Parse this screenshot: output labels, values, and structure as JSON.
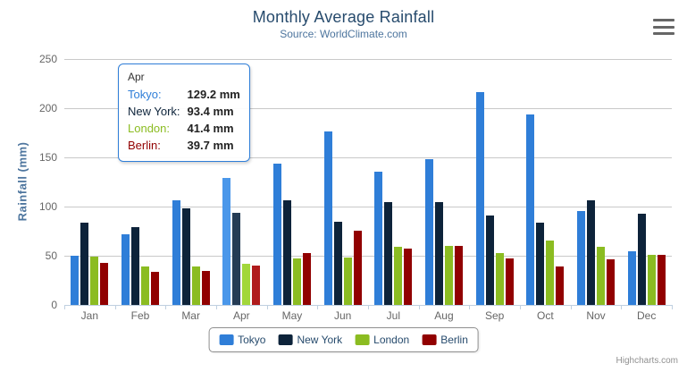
{
  "title": "Monthly Average Rainfall",
  "subtitle": "Source: WorldClimate.com",
  "credits": "Highcharts.com",
  "chart_data": {
    "type": "bar",
    "title": "Monthly Average Rainfall",
    "subtitle": "Source: WorldClimate.com",
    "categories": [
      "Jan",
      "Feb",
      "Mar",
      "Apr",
      "May",
      "Jun",
      "Jul",
      "Aug",
      "Sep",
      "Oct",
      "Nov",
      "Dec"
    ],
    "series": [
      {
        "name": "Tokyo",
        "color": "#2f7ed8",
        "values": [
          49.9,
          71.5,
          106.4,
          129.2,
          144.0,
          176.0,
          135.6,
          148.5,
          216.4,
          194.1,
          95.6,
          54.4
        ]
      },
      {
        "name": "New York",
        "color": "#0d233a",
        "values": [
          83.6,
          78.8,
          98.5,
          93.4,
          106.0,
          84.5,
          105.0,
          104.3,
          91.2,
          83.5,
          106.6,
          92.3
        ]
      },
      {
        "name": "London",
        "color": "#8bbc21",
        "values": [
          48.9,
          38.8,
          39.3,
          41.4,
          47.0,
          48.3,
          59.0,
          59.6,
          52.4,
          65.2,
          59.3,
          51.2
        ]
      },
      {
        "name": "Berlin",
        "color": "#910000",
        "values": [
          42.4,
          33.2,
          34.5,
          39.7,
          52.6,
          75.5,
          57.4,
          60.4,
          47.6,
          39.1,
          46.8,
          51.1
        ]
      }
    ],
    "xlabel": "",
    "ylabel": "Rainfall (mm)",
    "ylim": [
      0,
      250
    ],
    "yticks": [
      0,
      50,
      100,
      150,
      200,
      250
    ],
    "grid": true,
    "legend_position": "bottom"
  },
  "tooltip": {
    "header": "Apr",
    "category_index": 3,
    "border_color": "#2f7ed8",
    "rows": [
      {
        "label": "Tokyo:",
        "color": "#2f7ed8",
        "value": "129.2 mm"
      },
      {
        "label": "New York:",
        "color": "#0d233a",
        "value": "93.4 mm"
      },
      {
        "label": "London:",
        "color": "#8bbc21",
        "value": "41.4 mm"
      },
      {
        "label": "Berlin:",
        "color": "#910000",
        "value": "39.7 mm"
      }
    ]
  },
  "hover_colors": [
    "#4a97ea",
    "#253c55",
    "#a2d73a",
    "#b01c1c"
  ],
  "colors": {
    "title_text": "#274b6d",
    "subtitle_text": "#4d759e",
    "axis_title_text": "#4d759e",
    "axis_label_text": "#666666",
    "gridline": "#c9c9c9",
    "axis_line": "#c0d0e0",
    "legend_text": "#274b6d",
    "legend_border": "#909090",
    "credits_text": "#909090"
  }
}
